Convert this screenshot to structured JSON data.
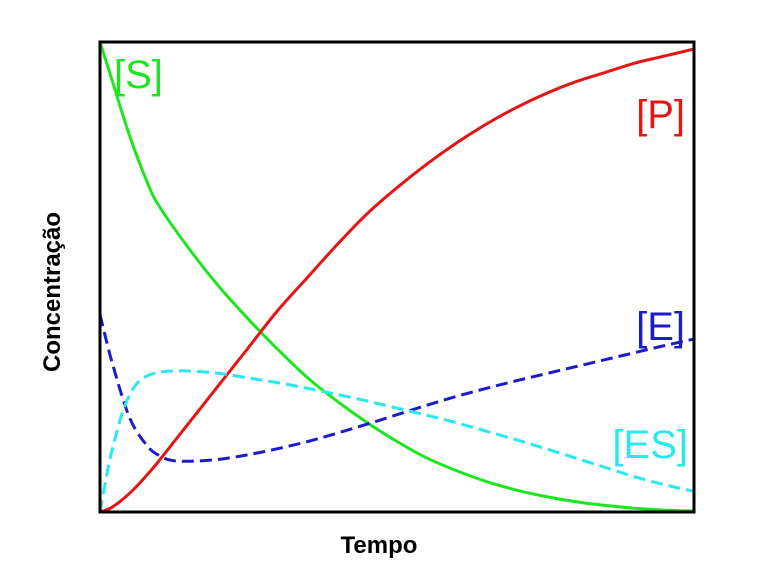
{
  "chart_data": {
    "type": "line",
    "xlabel": "Tempo",
    "ylabel": "Concentração",
    "xlim": [
      0,
      1
    ],
    "ylim": [
      0,
      1
    ],
    "grid": false,
    "series": [
      {
        "name": "[S]",
        "color": "#1ee61e",
        "dash": "solid",
        "x": [
          0,
          0.02,
          0.05,
          0.08,
          0.1,
          0.15,
          0.2,
          0.25,
          0.3,
          0.35,
          0.4,
          0.45,
          0.5,
          0.55,
          0.6,
          0.65,
          0.7,
          0.75,
          0.8,
          0.85,
          0.9,
          0.95,
          1.0
        ],
        "y": [
          1.0,
          0.92,
          0.8,
          0.7,
          0.65,
          0.56,
          0.48,
          0.41,
          0.345,
          0.285,
          0.235,
          0.19,
          0.15,
          0.115,
          0.088,
          0.065,
          0.047,
          0.033,
          0.022,
          0.014,
          0.008,
          0.004,
          0.002
        ]
      },
      {
        "name": "[P]",
        "color": "#e61414",
        "dash": "solid",
        "x": [
          0,
          0.02,
          0.05,
          0.08,
          0.1,
          0.15,
          0.2,
          0.25,
          0.3,
          0.35,
          0.4,
          0.45,
          0.5,
          0.55,
          0.6,
          0.65,
          0.7,
          0.75,
          0.8,
          0.85,
          0.9,
          0.95,
          1.0
        ],
        "y": [
          0.0,
          0.01,
          0.04,
          0.08,
          0.11,
          0.19,
          0.27,
          0.35,
          0.43,
          0.5,
          0.57,
          0.635,
          0.69,
          0.74,
          0.785,
          0.825,
          0.86,
          0.89,
          0.915,
          0.935,
          0.955,
          0.97,
          0.985
        ]
      },
      {
        "name": "[E]",
        "color": "#1c1ccc",
        "dash": "dashed",
        "x": [
          0,
          0.02,
          0.05,
          0.08,
          0.1,
          0.12,
          0.15,
          0.2,
          0.25,
          0.3,
          0.35,
          0.4,
          0.45,
          0.5,
          0.55,
          0.6,
          0.65,
          0.7,
          0.75,
          0.8,
          0.85,
          0.9,
          0.95,
          1.0
        ],
        "y": [
          0.42,
          0.32,
          0.2,
          0.14,
          0.12,
          0.11,
          0.108,
          0.112,
          0.122,
          0.135,
          0.15,
          0.168,
          0.187,
          0.207,
          0.227,
          0.246,
          0.263,
          0.279,
          0.294,
          0.309,
          0.324,
          0.339,
          0.354,
          0.368
        ]
      },
      {
        "name": "[ES]",
        "color": "#28e8f0",
        "dash": "dashed",
        "x": [
          0,
          0.01,
          0.02,
          0.04,
          0.06,
          0.08,
          0.1,
          0.12,
          0.15,
          0.2,
          0.25,
          0.3,
          0.35,
          0.4,
          0.45,
          0.5,
          0.55,
          0.6,
          0.65,
          0.7,
          0.75,
          0.8,
          0.85,
          0.9,
          0.95,
          1.0
        ],
        "y": [
          0.0,
          0.07,
          0.13,
          0.22,
          0.27,
          0.29,
          0.297,
          0.3,
          0.3,
          0.295,
          0.285,
          0.275,
          0.263,
          0.25,
          0.236,
          0.221,
          0.206,
          0.19,
          0.172,
          0.154,
          0.135,
          0.115,
          0.095,
          0.075,
          0.058,
          0.044
        ]
      }
    ]
  }
}
